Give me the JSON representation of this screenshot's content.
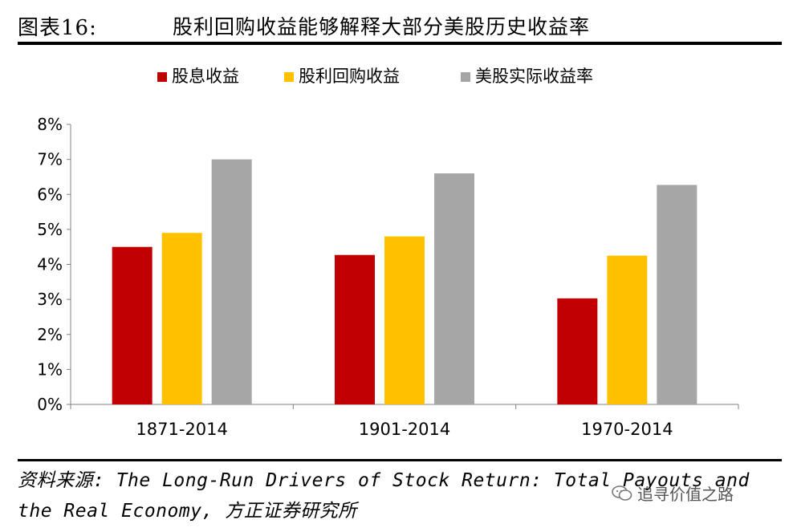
{
  "figure": {
    "label": "图表16:",
    "title": "股利回购收益能够解释大部分美股历史收益率"
  },
  "chart_data": {
    "type": "bar",
    "categories": [
      "1871-2014",
      "1901-2014",
      "1970-2014"
    ],
    "series": [
      {
        "name": "股息收益",
        "color": "#C00000",
        "values": [
          4.5,
          4.27,
          3.03
        ]
      },
      {
        "name": "股利回购收益",
        "color": "#FFC000",
        "values": [
          4.9,
          4.8,
          4.25
        ]
      },
      {
        "name": "美股实际收益率",
        "color": "#A6A6A6",
        "values": [
          7.0,
          6.6,
          6.27
        ]
      }
    ],
    "yticks": [
      "0%",
      "1%",
      "2%",
      "3%",
      "4%",
      "5%",
      "6%",
      "7%",
      "8%"
    ],
    "ylim": [
      0,
      8
    ],
    "legend_position": "top",
    "grid": false
  },
  "source": {
    "line1": "资料来源: The Long-Run Drivers of Stock Return: Total Payouts and",
    "line2": "the Real Economy, 方正证券研究所"
  },
  "watermark": {
    "text": "追寻价值之路",
    "icon": "wechat-icon"
  }
}
